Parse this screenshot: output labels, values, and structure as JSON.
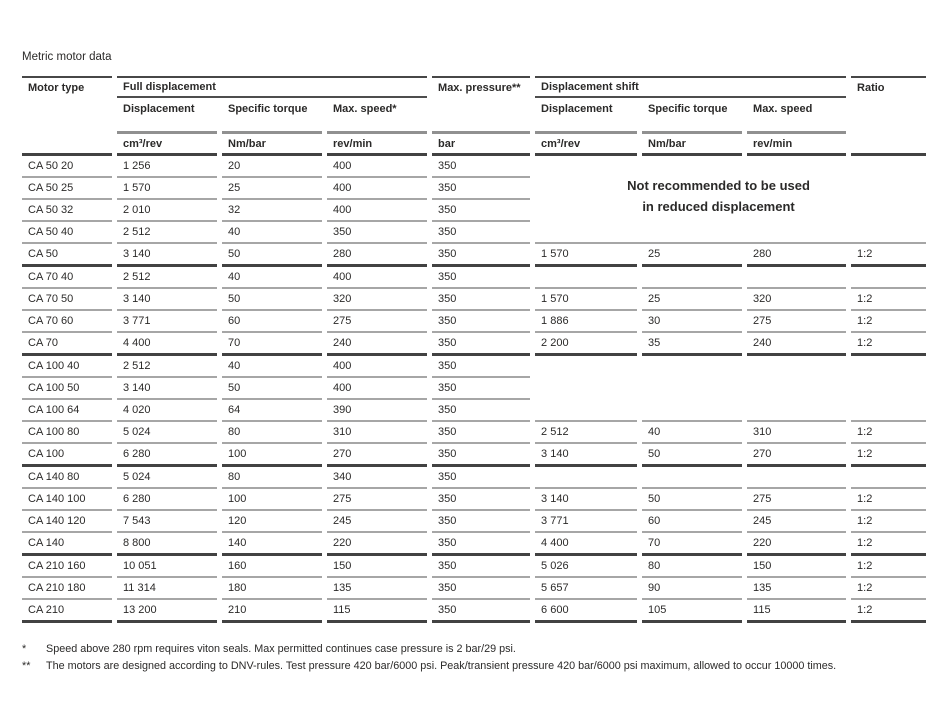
{
  "page": {
    "title": "Metric motor data"
  },
  "table": {
    "group_headers": {
      "motor_type": "Motor type",
      "full_displacement": "Full displacement",
      "max_pressure": "Max. pressure**",
      "displacement_shift": "Displacement shift",
      "ratio": "Ratio"
    },
    "sub_headers": {
      "full": [
        "Displacement",
        "Specific torque",
        "Max. speed*"
      ],
      "shift": [
        "Displacement",
        "Specific torque",
        "Max. speed"
      ]
    },
    "units": {
      "full": [
        "cm³/rev",
        "Nm/bar",
        "rev/min"
      ],
      "pressure": "bar",
      "shift": [
        "cm³/rev",
        "Nm/bar",
        "rev/min"
      ]
    },
    "not_recommended_note": [
      "Not recommended to be used",
      "in reduced displacement"
    ],
    "rows": [
      {
        "motor_type": "CA 50 20",
        "disp": "1 256",
        "torque": "20",
        "speed": "400",
        "pressure": "350",
        "s_disp": "",
        "s_torque": "",
        "s_speed": "",
        "ratio": "",
        "group_end": false,
        "right": "note",
        "rb": false
      },
      {
        "motor_type": "CA 50 25",
        "disp": "1 570",
        "torque": "25",
        "speed": "400",
        "pressure": "350",
        "s_disp": "",
        "s_torque": "",
        "s_speed": "",
        "ratio": "",
        "group_end": false,
        "right": "skip",
        "rb": false
      },
      {
        "motor_type": "CA 50 32",
        "disp": "2 010",
        "torque": "32",
        "speed": "400",
        "pressure": "350",
        "s_disp": "",
        "s_torque": "",
        "s_speed": "",
        "ratio": "",
        "group_end": false,
        "right": "skip",
        "rb": false
      },
      {
        "motor_type": "CA 50 40",
        "disp": "2 512",
        "torque": "40",
        "speed": "350",
        "pressure": "350",
        "s_disp": "",
        "s_torque": "",
        "s_speed": "",
        "ratio": "",
        "group_end": false,
        "right": "skip",
        "rb": false
      },
      {
        "motor_type": "CA 50",
        "disp": "3 140",
        "torque": "50",
        "speed": "280",
        "pressure": "350",
        "s_disp": "1 570",
        "s_torque": "25",
        "s_speed": "280",
        "ratio": "1:2",
        "group_end": true,
        "right": "cells",
        "rb": true
      },
      {
        "motor_type": "CA 70 40",
        "disp": "2 512",
        "torque": "40",
        "speed": "400",
        "pressure": "350",
        "s_disp": "",
        "s_torque": "",
        "s_speed": "",
        "ratio": "",
        "group_end": false,
        "right": "cells",
        "rb": true
      },
      {
        "motor_type": "CA 70 50",
        "disp": "3 140",
        "torque": "50",
        "speed": "320",
        "pressure": "350",
        "s_disp": "1 570",
        "s_torque": "25",
        "s_speed": "320",
        "ratio": "1:2",
        "group_end": false,
        "right": "cells",
        "rb": true
      },
      {
        "motor_type": "CA 70 60",
        "disp": "3 771",
        "torque": "60",
        "speed": "275",
        "pressure": "350",
        "s_disp": "1 886",
        "s_torque": "30",
        "s_speed": "275",
        "ratio": "1:2",
        "group_end": false,
        "right": "cells",
        "rb": true
      },
      {
        "motor_type": "CA 70",
        "disp": "4 400",
        "torque": "70",
        "speed": "240",
        "pressure": "350",
        "s_disp": "2 200",
        "s_torque": "35",
        "s_speed": "240",
        "ratio": "1:2",
        "group_end": true,
        "right": "cells",
        "rb": true
      },
      {
        "motor_type": "CA 100 40",
        "disp": "2 512",
        "torque": "40",
        "speed": "400",
        "pressure": "350",
        "s_disp": "",
        "s_torque": "",
        "s_speed": "",
        "ratio": "",
        "group_end": false,
        "right": "cells",
        "rb": false
      },
      {
        "motor_type": "CA 100 50",
        "disp": "3 140",
        "torque": "50",
        "speed": "400",
        "pressure": "350",
        "s_disp": "",
        "s_torque": "",
        "s_speed": "",
        "ratio": "",
        "group_end": false,
        "right": "cells",
        "rb": false
      },
      {
        "motor_type": "CA 100 64",
        "disp": "4 020",
        "torque": "64",
        "speed": "390",
        "pressure": "350",
        "s_disp": "",
        "s_torque": "",
        "s_speed": "",
        "ratio": "",
        "group_end": false,
        "right": "cells",
        "rb": true
      },
      {
        "motor_type": "CA 100 80",
        "disp": "5 024",
        "torque": "80",
        "speed": "310",
        "pressure": "350",
        "s_disp": "2 512",
        "s_torque": "40",
        "s_speed": "310",
        "ratio": "1:2",
        "group_end": false,
        "right": "cells",
        "rb": true
      },
      {
        "motor_type": "CA 100",
        "disp": "6 280",
        "torque": "100",
        "speed": "270",
        "pressure": "350",
        "s_disp": "3 140",
        "s_torque": "50",
        "s_speed": "270",
        "ratio": "1:2",
        "group_end": true,
        "right": "cells",
        "rb": true
      },
      {
        "motor_type": "CA 140 80",
        "disp": "5 024",
        "torque": "80",
        "speed": "340",
        "pressure": "350",
        "s_disp": "",
        "s_torque": "",
        "s_speed": "",
        "ratio": "",
        "group_end": false,
        "right": "cells",
        "rb": true
      },
      {
        "motor_type": "CA 140 100",
        "disp": "6 280",
        "torque": "100",
        "speed": "275",
        "pressure": "350",
        "s_disp": "3 140",
        "s_torque": "50",
        "s_speed": "275",
        "ratio": "1:2",
        "group_end": false,
        "right": "cells",
        "rb": true
      },
      {
        "motor_type": "CA 140 120",
        "disp": "7 543",
        "torque": "120",
        "speed": "245",
        "pressure": "350",
        "s_disp": "3 771",
        "s_torque": "60",
        "s_speed": "245",
        "ratio": "1:2",
        "group_end": false,
        "right": "cells",
        "rb": true
      },
      {
        "motor_type": "CA 140",
        "disp": "8 800",
        "torque": "140",
        "speed": "220",
        "pressure": "350",
        "s_disp": "4 400",
        "s_torque": "70",
        "s_speed": "220",
        "ratio": "1:2",
        "group_end": true,
        "right": "cells",
        "rb": true
      },
      {
        "motor_type": "CA 210 160",
        "disp": "10 051",
        "torque": "160",
        "speed": "150",
        "pressure": "350",
        "s_disp": "5 026",
        "s_torque": "80",
        "s_speed": "150",
        "ratio": "1:2",
        "group_end": false,
        "right": "cells",
        "rb": true
      },
      {
        "motor_type": "CA 210 180",
        "disp": "11 314",
        "torque": "180",
        "speed": "135",
        "pressure": "350",
        "s_disp": "5 657",
        "s_torque": "90",
        "s_speed": "135",
        "ratio": "1:2",
        "group_end": false,
        "right": "cells",
        "rb": true
      },
      {
        "motor_type": "CA 210",
        "disp": "13 200",
        "torque": "210",
        "speed": "115",
        "pressure": "350",
        "s_disp": "6 600",
        "s_torque": "105",
        "s_speed": "115",
        "ratio": "1:2",
        "group_end": true,
        "right": "cells",
        "rb": true
      }
    ]
  },
  "footnotes": [
    {
      "marker": "*",
      "text": "Speed above 280 rpm requires viton seals. Max permitted continues case pressure is 2 bar/29 psi."
    },
    {
      "marker": "**",
      "text": "The motors are designed according to DNV-rules. Test pressure 420 bar/6000 psi. Peak/transient pressure 420 bar/6000 psi maximum, allowed to occur 10000 times."
    }
  ]
}
